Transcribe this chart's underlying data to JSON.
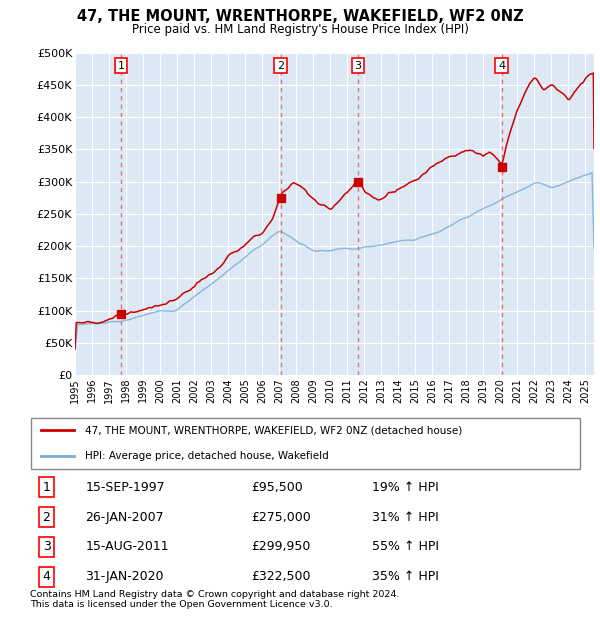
{
  "title": "47, THE MOUNT, WRENTHORPE, WAKEFIELD, WF2 0NZ",
  "subtitle": "Price paid vs. HM Land Registry's House Price Index (HPI)",
  "ylim": [
    0,
    500000
  ],
  "yticks": [
    0,
    50000,
    100000,
    150000,
    200000,
    250000,
    300000,
    350000,
    400000,
    450000,
    500000
  ],
  "ytick_labels": [
    "£0",
    "£50K",
    "£100K",
    "£150K",
    "£200K",
    "£250K",
    "£300K",
    "£350K",
    "£400K",
    "£450K",
    "£500K"
  ],
  "xlim_start": 1995.0,
  "xlim_end": 2025.5,
  "plot_bg_color": "#dce9f5",
  "grid_color": "#ffffff",
  "transactions": [
    {
      "num": 1,
      "date_x": 1997.71,
      "price": 95500,
      "label": "15-SEP-1997",
      "price_label": "£95,500",
      "pct": "19%"
    },
    {
      "num": 2,
      "date_x": 2007.08,
      "price": 275000,
      "label": "26-JAN-2007",
      "price_label": "£275,000",
      "pct": "31%"
    },
    {
      "num": 3,
      "date_x": 2011.62,
      "price": 299950,
      "label": "15-AUG-2011",
      "price_label": "£299,950",
      "pct": "55%"
    },
    {
      "num": 4,
      "date_x": 2020.08,
      "price": 322500,
      "label": "31-JAN-2020",
      "price_label": "£322,500",
      "pct": "35%"
    }
  ],
  "legend_line1": "47, THE MOUNT, WRENTHORPE, WAKEFIELD, WF2 0NZ (detached house)",
  "legend_line2": "HPI: Average price, detached house, Wakefield",
  "footer1": "Contains HM Land Registry data © Crown copyright and database right 2024.",
  "footer2": "This data is licensed under the Open Government Licence v3.0.",
  "red_color": "#cc0000",
  "blue_color": "#7aadd4",
  "vline_color": "#e87070"
}
